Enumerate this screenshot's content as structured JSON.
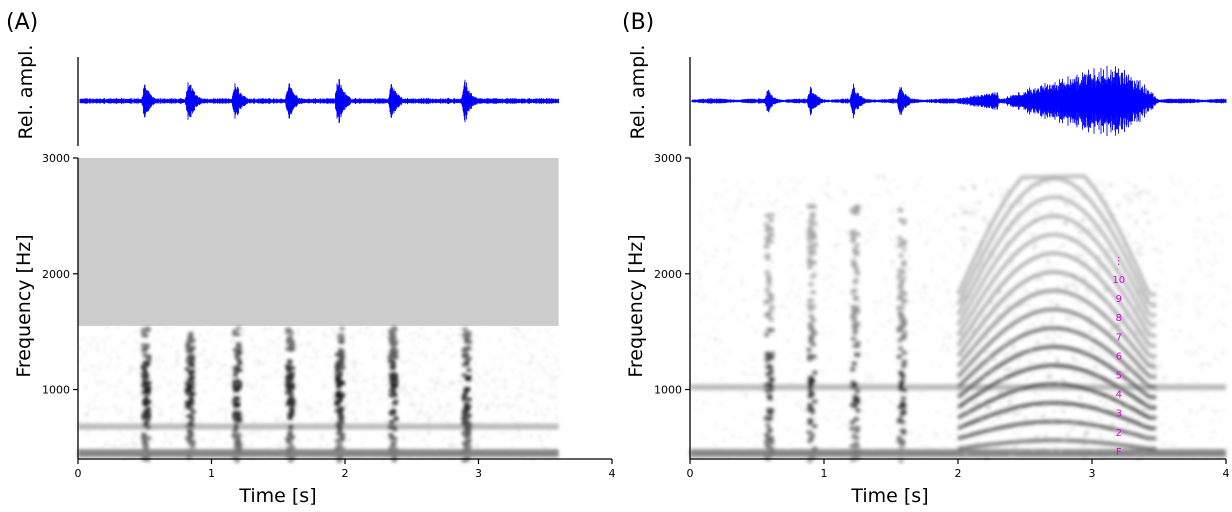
{
  "chart_data": [
    {
      "panel": "(A)",
      "type": "heatmap",
      "waveform": {
        "ylabel": "Rel. ampl.",
        "color": "#0000ff",
        "pulses": [
          {
            "t": 0.5,
            "amp": 0.42
          },
          {
            "t": 0.83,
            "amp": 0.55
          },
          {
            "t": 1.18,
            "amp": 0.5
          },
          {
            "t": 1.58,
            "amp": 0.48
          },
          {
            "t": 1.95,
            "amp": 0.6
          },
          {
            "t": 2.35,
            "amp": 0.45
          },
          {
            "t": 2.9,
            "amp": 0.52
          }
        ],
        "duration": 3.6
      },
      "spectrogram": {
        "xlabel": "Time [s]",
        "ylabel": "Frequency [Hz]",
        "xlim": [
          0,
          4
        ],
        "ylim": [
          400,
          3000
        ],
        "xticks": [
          "0",
          "1",
          "2",
          "3",
          "4"
        ],
        "yticks": [
          "1000",
          "2000",
          "3000"
        ],
        "data_end_time": 3.6,
        "max_recorded_frequency": 1550,
        "unrecorded_color": "#cccccc",
        "pulse_times": [
          0.5,
          0.83,
          1.18,
          1.58,
          1.95,
          2.35,
          2.9
        ],
        "band_frequencies": [
          450,
          680
        ]
      }
    },
    {
      "panel": "(B)",
      "type": "heatmap",
      "waveform": {
        "ylabel": "Rel. ampl.",
        "color": "#0000ff",
        "pulses": [
          {
            "t": 0.58,
            "amp": 0.3
          },
          {
            "t": 0.9,
            "amp": 0.36
          },
          {
            "t": 1.22,
            "amp": 0.4
          },
          {
            "t": 1.57,
            "amp": 0.38
          }
        ],
        "burst": {
          "start": 2.3,
          "peak": 3.2,
          "end": 3.5,
          "amp": 0.95
        },
        "duration": 4.0
      },
      "spectrogram": {
        "xlabel": "Time [s]",
        "ylabel": "Frequency [Hz]",
        "xlim": [
          0,
          4
        ],
        "ylim": [
          400,
          3000
        ],
        "xticks": [
          "0",
          "1",
          "2",
          "3",
          "4"
        ],
        "yticks": [
          "1000",
          "2000",
          "3000"
        ],
        "pulse_times": [
          0.58,
          0.9,
          1.22,
          1.57
        ],
        "band_frequencies": [
          450,
          1020
        ],
        "harmonic_burst": {
          "start": 2.0,
          "end": 3.5,
          "fundamental_peak": 170
        },
        "harmonic_labels": [
          "F",
          "2",
          "3",
          "4",
          "5",
          "6",
          "7",
          "8",
          "9",
          "10",
          "⋮"
        ],
        "harmonic_label_color": "#e000e0"
      }
    }
  ]
}
